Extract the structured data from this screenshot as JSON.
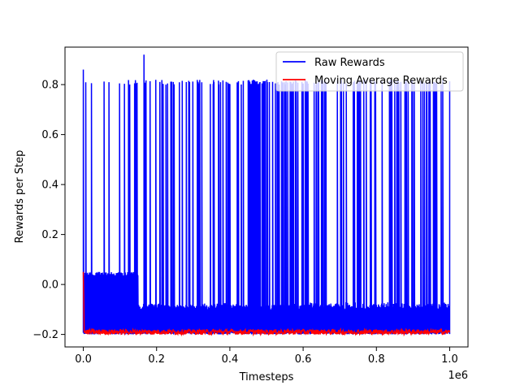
{
  "chart_data": {
    "type": "line",
    "xlabel": "Timesteps",
    "ylabel": "Rewards per Step",
    "x_offset_label": "1e6",
    "xlim": [
      -50000,
      1050000
    ],
    "ylim": [
      -0.25,
      0.95
    ],
    "x_ticks": [
      0,
      200000,
      400000,
      600000,
      800000,
      1000000
    ],
    "x_tick_labels": [
      "0.0",
      "0.2",
      "0.4",
      "0.6",
      "0.8",
      "1.0"
    ],
    "y_ticks": [
      -0.2,
      0.0,
      0.2,
      0.4,
      0.6,
      0.8
    ],
    "y_tick_labels": [
      "−0.2",
      "0.0",
      "0.2",
      "0.4",
      "0.6",
      "0.8"
    ],
    "legend_position": "top-right",
    "series": [
      {
        "name": "Raw Rewards",
        "color": "#0000ff",
        "x_range": [
          0,
          1000000
        ],
        "baseline_band": [
          -0.2,
          -0.08
        ],
        "early_band": [
          -0.2,
          0.05
        ],
        "spike_value": 0.81,
        "max_spike": 0.92,
        "max_spike_x": 165000
      },
      {
        "name": "Moving Average Rewards",
        "color": "#ff0000",
        "x_range": [
          0,
          1000000
        ],
        "initial_value": 0.05,
        "band": [
          -0.2,
          -0.18
        ]
      }
    ]
  }
}
